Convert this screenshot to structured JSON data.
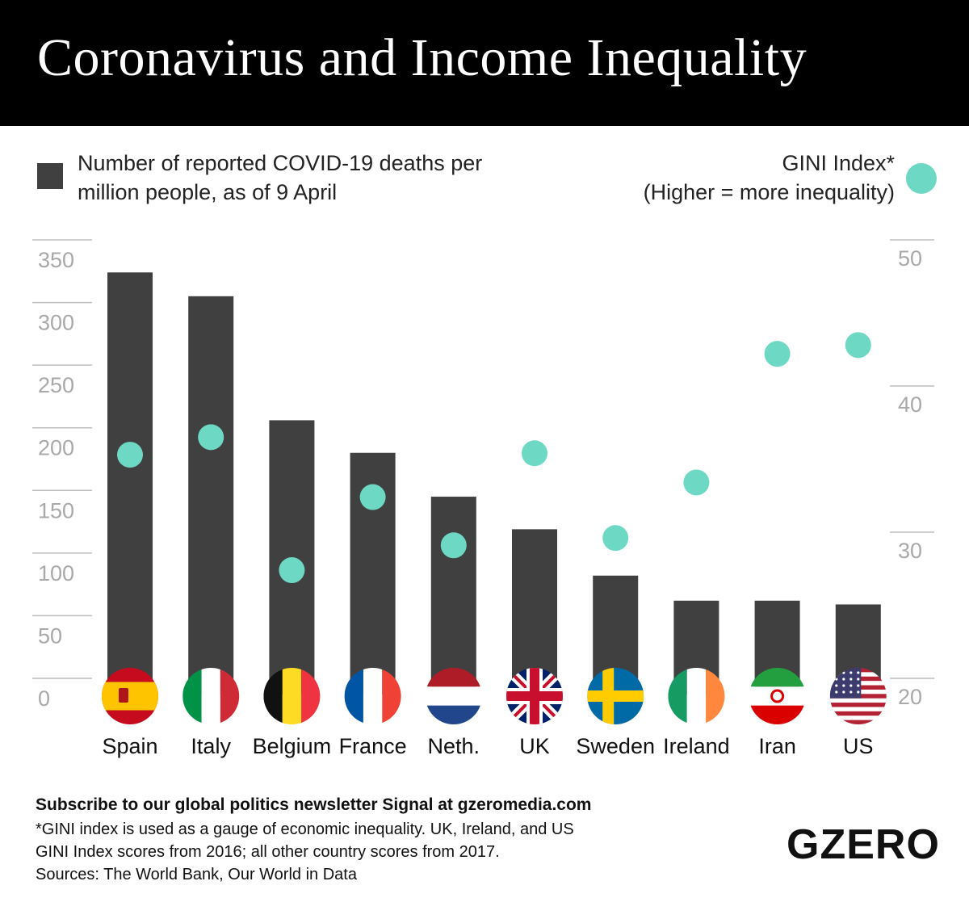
{
  "header": {
    "title": "Coronavirus and Income Inequality"
  },
  "legend": {
    "bars": "Number of reported COVID-19 deaths per million people, as of 9 April",
    "gini_line1": "GINI Index*",
    "gini_line2": "(Higher = more inequality)"
  },
  "chart_data": {
    "type": "bar",
    "categories": [
      "Spain",
      "Italy",
      "Belgium",
      "France",
      "Neth.",
      "UK",
      "Sweden",
      "Ireland",
      "Iran",
      "US"
    ],
    "series": [
      {
        "name": "Number of reported COVID-19 deaths per million people, as of 9 April",
        "type": "bar",
        "axis": "left",
        "values": [
          324,
          305,
          206,
          180,
          145,
          119,
          82,
          62,
          62,
          59
        ]
      },
      {
        "name": "GINI Index",
        "type": "scatter",
        "axis": "right",
        "values": [
          35.3,
          36.5,
          27.4,
          32.4,
          29.1,
          35.4,
          29.6,
          33.4,
          42.2,
          42.8
        ]
      }
    ],
    "y_left": {
      "ticks": [
        0,
        50,
        100,
        150,
        200,
        250,
        300,
        350
      ],
      "range": [
        0,
        350
      ]
    },
    "y_right": {
      "ticks": [
        20,
        30,
        40,
        50
      ],
      "range": [
        20,
        50
      ]
    },
    "colors": {
      "bar": "#404041",
      "dot": "#6dd9c5",
      "axis_text": "#a9a9a9",
      "gridline": "#bdbdbd"
    }
  },
  "flags": [
    "spain-flag-icon",
    "italy-flag-icon",
    "belgium-flag-icon",
    "france-flag-icon",
    "netherlands-flag-icon",
    "uk-flag-icon",
    "sweden-flag-icon",
    "ireland-flag-icon",
    "iran-flag-icon",
    "us-flag-icon"
  ],
  "footer": {
    "subscribe": "Subscribe to our global politics newsletter Signal at gzeromedia.com",
    "note_line1": "*GINI index is used as a gauge of economic inequality. UK, Ireland, and US",
    "note_line2": "GINI Index scores from 2016; all other country scores from 2017.",
    "sources": "Sources: The World Bank, Our World in Data"
  },
  "logo": "GZERO"
}
